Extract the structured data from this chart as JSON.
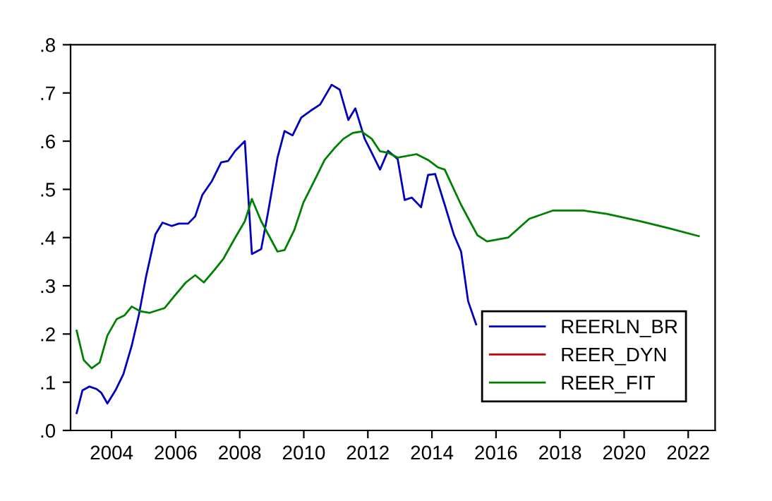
{
  "chart_data": {
    "type": "line",
    "xlim": [
      2002.72,
      2022.84
    ],
    "ylim": [
      0,
      0.8
    ],
    "xticks": [
      2004,
      2006,
      2008,
      2010,
      2012,
      2014,
      2016,
      2018,
      2020,
      2022
    ],
    "yticks": [
      {
        "value": 0,
        "label": ".0"
      },
      {
        "value": 0.1,
        "label": ".1"
      },
      {
        "value": 0.2,
        "label": ".2"
      },
      {
        "value": 0.3,
        "label": ".3"
      },
      {
        "value": 0.4,
        "label": ".4"
      },
      {
        "value": 0.5,
        "label": ".5"
      },
      {
        "value": 0.6,
        "label": ".6"
      },
      {
        "value": 0.7,
        "label": ".7"
      },
      {
        "value": 0.8,
        "label": ".8"
      }
    ],
    "grid": false,
    "legend": "bottom right",
    "line_style": "solid",
    "marker": "none",
    "series": [
      {
        "name": "REERLN_BR",
        "color": "#0000c0",
        "x": [
          2002.91,
          2003.09,
          2003.31,
          2003.53,
          2003.68,
          2003.87,
          2004.12,
          2004.37,
          2004.63,
          2004.85,
          2005.07,
          2005.37,
          2005.59,
          2005.88,
          2006.1,
          2006.39,
          2006.61,
          2006.83,
          2007.13,
          2007.42,
          2007.64,
          2007.86,
          2008.16,
          2008.38,
          2008.67,
          2008.89,
          2009.18,
          2009.4,
          2009.65,
          2009.92,
          2010.21,
          2010.51,
          2010.87,
          2011.12,
          2011.39,
          2011.61,
          2011.9,
          2012.12,
          2012.38,
          2012.63,
          2012.93,
          2013.15,
          2013.37,
          2013.66,
          2013.88,
          2014.1,
          2014.4,
          2014.69,
          2014.91,
          2015.13,
          2015.38
        ],
        "values": [
          0.036,
          0.083,
          0.091,
          0.086,
          0.078,
          0.056,
          0.083,
          0.117,
          0.176,
          0.239,
          0.317,
          0.407,
          0.431,
          0.424,
          0.429,
          0.429,
          0.444,
          0.488,
          0.517,
          0.556,
          0.559,
          0.58,
          0.6,
          0.366,
          0.376,
          0.454,
          0.566,
          0.621,
          0.612,
          0.649,
          0.663,
          0.676,
          0.717,
          0.707,
          0.644,
          0.668,
          0.605,
          0.576,
          0.541,
          0.58,
          0.563,
          0.478,
          0.483,
          0.463,
          0.53,
          0.532,
          0.468,
          0.405,
          0.371,
          0.268,
          0.22
        ]
      },
      {
        "name": "REER_DYN",
        "color": "#d00000"
      },
      {
        "name": "REER_FIT",
        "color": "#008000",
        "x": [
          2002.91,
          2003.13,
          2003.38,
          2003.63,
          2003.87,
          2004.16,
          2004.41,
          2004.63,
          2004.9,
          2005.19,
          2005.66,
          2005.95,
          2006.32,
          2006.61,
          2006.88,
          2007.2,
          2007.49,
          2007.86,
          2008.16,
          2008.38,
          2008.67,
          2009.18,
          2009.4,
          2009.7,
          2009.99,
          2010.36,
          2010.65,
          2010.95,
          2011.24,
          2011.53,
          2011.8,
          2012.12,
          2012.38,
          2012.63,
          2012.93,
          2013.52,
          2013.88,
          2014.18,
          2014.4,
          2014.91,
          2015.42,
          2015.72,
          2016.38,
          2017.04,
          2017.77,
          2018.73,
          2019.46,
          2020.49,
          2021.37,
          2022.33
        ],
        "values": [
          0.207,
          0.146,
          0.129,
          0.141,
          0.197,
          0.231,
          0.239,
          0.257,
          0.247,
          0.244,
          0.254,
          0.278,
          0.307,
          0.322,
          0.307,
          0.332,
          0.356,
          0.4,
          0.434,
          0.48,
          0.434,
          0.371,
          0.374,
          0.415,
          0.473,
          0.522,
          0.561,
          0.585,
          0.605,
          0.617,
          0.62,
          0.605,
          0.579,
          0.576,
          0.566,
          0.573,
          0.561,
          0.546,
          0.541,
          0.468,
          0.405,
          0.392,
          0.4,
          0.439,
          0.456,
          0.456,
          0.449,
          0.434,
          0.42,
          0.403
        ]
      }
    ]
  }
}
